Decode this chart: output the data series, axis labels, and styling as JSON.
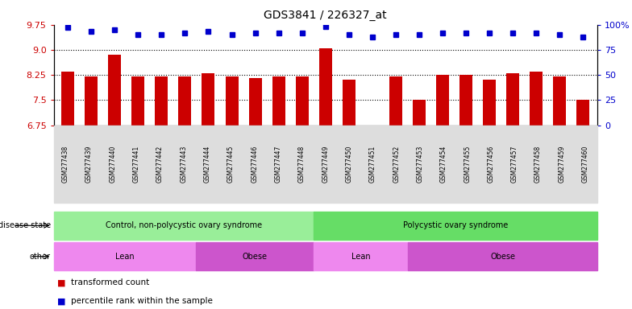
{
  "title": "GDS3841 / 226327_at",
  "samples": [
    "GSM277438",
    "GSM277439",
    "GSM277440",
    "GSM277441",
    "GSM277442",
    "GSM277443",
    "GSM277444",
    "GSM277445",
    "GSM277446",
    "GSM277447",
    "GSM277448",
    "GSM277449",
    "GSM277450",
    "GSM277451",
    "GSM277452",
    "GSM277453",
    "GSM277454",
    "GSM277455",
    "GSM277456",
    "GSM277457",
    "GSM277458",
    "GSM277459",
    "GSM277460"
  ],
  "bar_values": [
    8.35,
    8.2,
    8.85,
    8.2,
    8.2,
    8.2,
    8.3,
    8.2,
    8.15,
    8.2,
    8.2,
    9.05,
    8.1,
    6.75,
    8.2,
    7.5,
    8.25,
    8.25,
    8.1,
    8.3,
    8.35,
    8.2,
    7.5
  ],
  "dot_percentiles": [
    97,
    93,
    95,
    90,
    90,
    92,
    93,
    90,
    92,
    92,
    92,
    98,
    90,
    88,
    90,
    90,
    92,
    92,
    92,
    92,
    92,
    90,
    88
  ],
  "ylim_left": [
    6.75,
    9.75
  ],
  "ylim_right": [
    0,
    100
  ],
  "yticks_left": [
    6.75,
    7.5,
    8.25,
    9.0,
    9.75
  ],
  "yticks_right": [
    0,
    25,
    50,
    75,
    100
  ],
  "ytick_labels_right": [
    "0",
    "25",
    "50",
    "75",
    "100%"
  ],
  "bar_color": "#cc0000",
  "dot_color": "#0000cc",
  "disease_state_groups": [
    {
      "label": "Control, non-polycystic ovary syndrome",
      "start": 0,
      "end": 11,
      "color": "#99ee99"
    },
    {
      "label": "Polycystic ovary syndrome",
      "start": 11,
      "end": 23,
      "color": "#66dd66"
    }
  ],
  "other_groups": [
    {
      "label": "Lean",
      "start": 0,
      "end": 6,
      "color": "#ee88ee"
    },
    {
      "label": "Obese",
      "start": 6,
      "end": 11,
      "color": "#cc55cc"
    },
    {
      "label": "Lean",
      "start": 11,
      "end": 15,
      "color": "#ee88ee"
    },
    {
      "label": "Obese",
      "start": 15,
      "end": 23,
      "color": "#cc55cc"
    }
  ],
  "legend_labels": [
    "transformed count",
    "percentile rank within the sample"
  ],
  "legend_colors": [
    "#cc0000",
    "#0000cc"
  ]
}
